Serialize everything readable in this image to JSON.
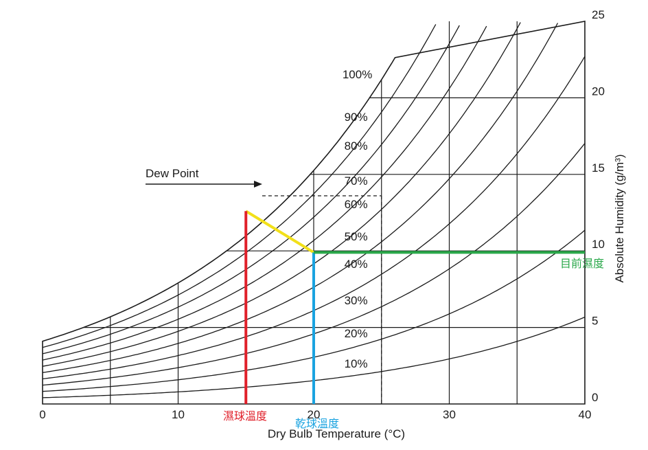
{
  "chart_data": {
    "type": "line",
    "xlabel": "Dry Bulb Temperature (°C)",
    "ylabel": "Absolute Humidity (g/m³)",
    "xlim": [
      0,
      40
    ],
    "ylim": [
      0,
      25
    ],
    "x_ticks": [
      "0",
      "10",
      "20",
      "30",
      "40"
    ],
    "y_ticks": [
      "0",
      "5",
      "10",
      "15",
      "20",
      "25"
    ],
    "grid": true,
    "rh_curves": [
      {
        "label": "100%",
        "rh": 100
      },
      {
        "label": "90%",
        "rh": 90
      },
      {
        "label": "80%",
        "rh": 80
      },
      {
        "label": "70%",
        "rh": 70
      },
      {
        "label": "60%",
        "rh": 60
      },
      {
        "label": "50%",
        "rh": 50
      },
      {
        "label": "40%",
        "rh": 40
      },
      {
        "label": "30%",
        "rh": 30
      },
      {
        "label": "20%",
        "rh": 20
      },
      {
        "label": "10%",
        "rh": 10
      }
    ],
    "dew_point": {
      "label": "Dew Point",
      "temperature": 16,
      "humidity": 13.6
    },
    "dashed_guides": {
      "dry_bulb": 25,
      "absolute_humidity": 13.6
    },
    "annotations": [
      {
        "label": "濕球溫度",
        "color": "#e0202a",
        "x": 15,
        "y_range": [
          0,
          12.6
        ]
      },
      {
        "label": "乾球溫度",
        "color": "#1aa3e0",
        "x": 20,
        "y_range": [
          0,
          9.9
        ]
      },
      {
        "label": "目前濕度",
        "color": "#2aa84a",
        "y": 9.9,
        "x_range": [
          20,
          40
        ]
      }
    ],
    "wet_bulb_line": {
      "color": "#f2e01a",
      "from": [
        15,
        12.6
      ],
      "to": [
        20,
        9.9
      ]
    }
  }
}
